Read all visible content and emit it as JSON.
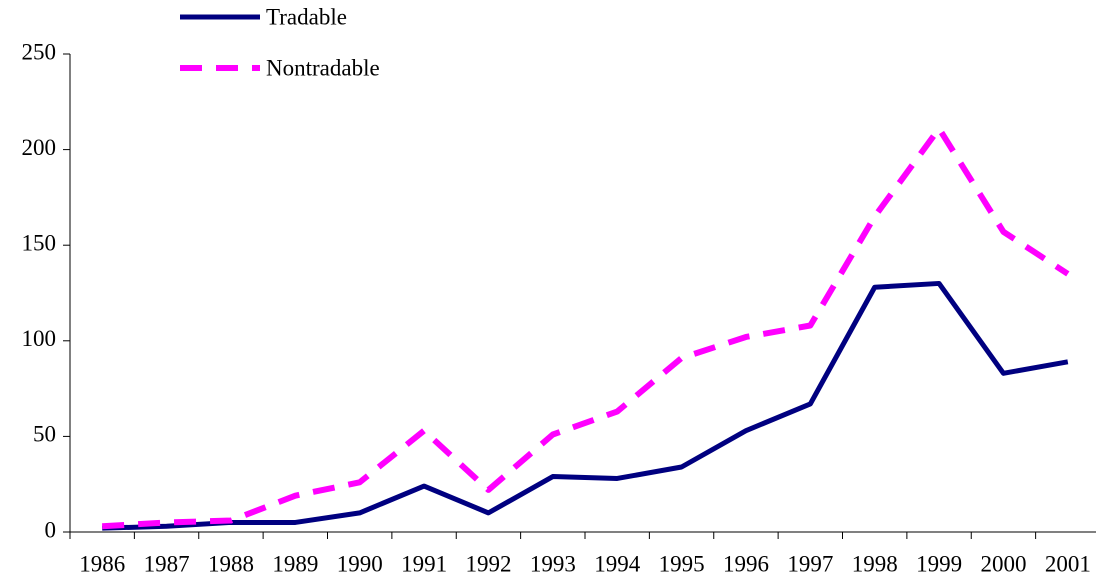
{
  "chart_data": {
    "type": "line",
    "categories": [
      "1986",
      "1987",
      "1988",
      "1989",
      "1990",
      "1991",
      "1992",
      "1993",
      "1994",
      "1995",
      "1996",
      "1997",
      "1998",
      "1999",
      "2000",
      "2001"
    ],
    "series": [
      {
        "name": "Tradable",
        "color": "#000080",
        "dash": false,
        "values": [
          2,
          3,
          5,
          5,
          10,
          24,
          10,
          29,
          28,
          34,
          53,
          67,
          128,
          130,
          83,
          89
        ]
      },
      {
        "name": "Nontradable",
        "color": "#ff00ff",
        "dash": true,
        "values": [
          3,
          5,
          6,
          19,
          26,
          53,
          22,
          51,
          63,
          91,
          102,
          108,
          165,
          211,
          157,
          135
        ]
      }
    ],
    "ylim": [
      0,
      250
    ],
    "yticks": [
      0,
      50,
      100,
      150,
      200,
      250
    ],
    "legend": "top-left"
  }
}
